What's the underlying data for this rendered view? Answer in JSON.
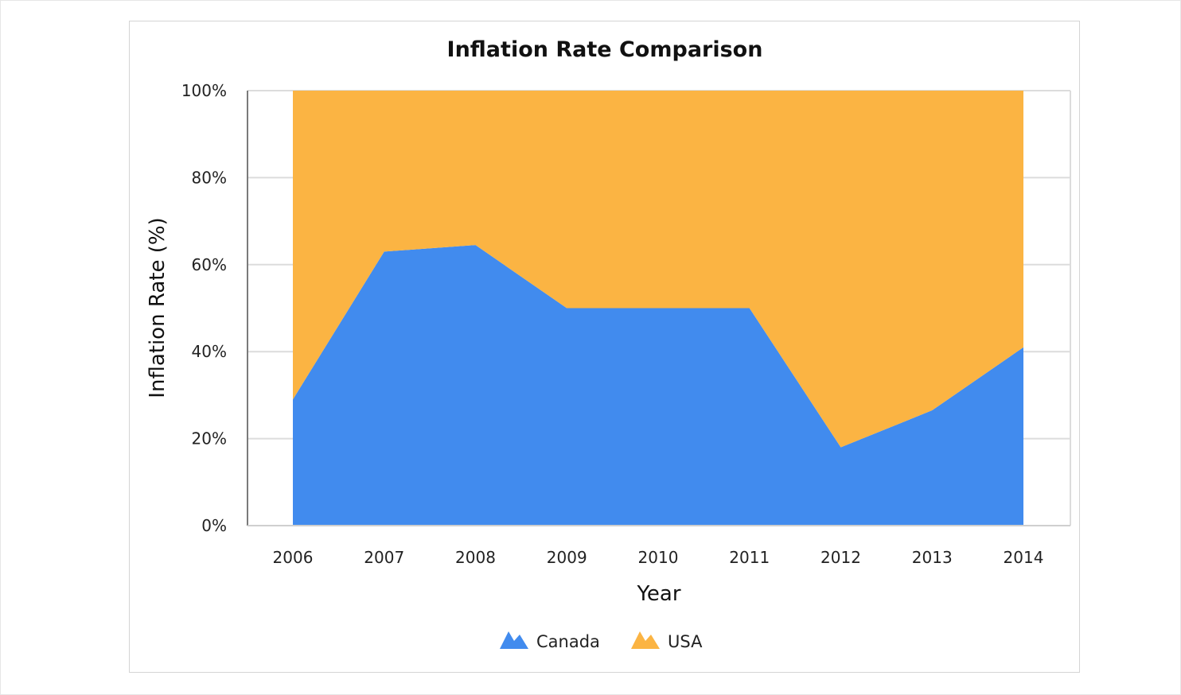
{
  "chart_data": {
    "type": "area",
    "stacked": "percent",
    "title": "Inflation Rate Comparison",
    "xlabel": "Year",
    "ylabel": "Inflation Rate (%)",
    "categories": [
      "2006",
      "2007",
      "2008",
      "2009",
      "2010",
      "2011",
      "2012",
      "2013",
      "2014"
    ],
    "yticks": [
      "0%",
      "20%",
      "40%",
      "60%",
      "80%",
      "100%"
    ],
    "ylim": [
      0,
      100
    ],
    "grid": true,
    "legend_position": "bottom",
    "series": [
      {
        "name": "Canada",
        "color": "#418BEE",
        "share_percent": [
          29,
          63,
          64.5,
          50,
          50,
          50,
          18,
          26.5,
          41
        ]
      },
      {
        "name": "USA",
        "color": "#FBB443",
        "share_percent": [
          71,
          37,
          35.5,
          50,
          50,
          50,
          82,
          73.5,
          59
        ]
      }
    ]
  }
}
